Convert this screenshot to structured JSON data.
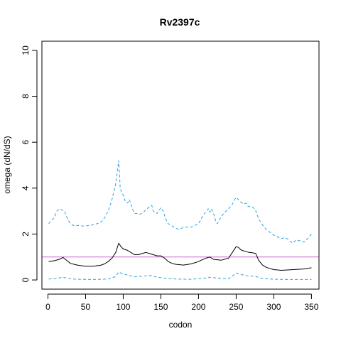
{
  "chart_data": {
    "type": "line",
    "title": "Rv2397c",
    "xlabel": "codon",
    "ylabel": "omega (dN/dS)",
    "xlim": [
      -8,
      360
    ],
    "ylim": [
      -0.4,
      10.4
    ],
    "xticks": [
      0,
      50,
      100,
      150,
      200,
      250,
      300,
      350
    ],
    "yticks": [
      0,
      2,
      4,
      6,
      8,
      10
    ],
    "grid": false,
    "reference_line": {
      "y": 1,
      "color": "#cc66cc"
    },
    "series": [
      {
        "role": "mean",
        "style": "solid",
        "color": "#000000",
        "x": [
          1,
          10,
          15,
          20,
          25,
          30,
          35,
          40,
          50,
          60,
          70,
          75,
          80,
          85,
          90,
          94,
          97,
          100,
          105,
          110,
          115,
          120,
          125,
          130,
          135,
          140,
          145,
          150,
          155,
          160,
          165,
          170,
          180,
          190,
          200,
          205,
          210,
          215,
          220,
          225,
          230,
          240,
          245,
          250,
          253,
          257,
          262,
          267,
          272,
          276,
          280,
          285,
          290,
          300,
          310,
          320,
          330,
          340,
          350
        ],
        "y": [
          0.8,
          0.85,
          0.9,
          0.98,
          0.85,
          0.72,
          0.68,
          0.64,
          0.6,
          0.6,
          0.64,
          0.7,
          0.8,
          0.95,
          1.2,
          1.6,
          1.45,
          1.35,
          1.3,
          1.2,
          1.1,
          1.1,
          1.15,
          1.2,
          1.15,
          1.1,
          1.05,
          1.05,
          0.95,
          0.8,
          0.72,
          0.68,
          0.65,
          0.7,
          0.8,
          0.88,
          0.95,
          1.0,
          0.9,
          0.88,
          0.86,
          0.95,
          1.2,
          1.45,
          1.42,
          1.3,
          1.25,
          1.2,
          1.18,
          1.15,
          0.85,
          0.65,
          0.55,
          0.45,
          0.42,
          0.44,
          0.46,
          0.48,
          0.53
        ]
      },
      {
        "role": "upper",
        "style": "dashed",
        "color": "#29a3e0",
        "x": [
          1,
          5,
          8,
          12,
          15,
          18,
          22,
          26,
          30,
          35,
          40,
          45,
          50,
          60,
          70,
          75,
          80,
          85,
          88,
          90,
          92,
          94,
          95,
          96,
          98,
          100,
          103,
          106,
          108,
          110,
          112,
          115,
          118,
          120,
          125,
          130,
          135,
          138,
          140,
          145,
          150,
          153,
          155,
          158,
          160,
          165,
          170,
          175,
          180,
          190,
          200,
          205,
          210,
          213,
          215,
          217,
          220,
          223,
          225,
          230,
          235,
          240,
          245,
          248,
          250,
          253,
          256,
          260,
          263,
          266,
          270,
          275,
          280,
          285,
          290,
          300,
          310,
          315,
          320,
          325,
          330,
          335,
          340,
          345,
          350
        ],
        "y": [
          2.45,
          2.6,
          2.7,
          3.0,
          3.1,
          3.05,
          3.0,
          2.65,
          2.45,
          2.35,
          2.38,
          2.35,
          2.35,
          2.4,
          2.5,
          2.7,
          3.0,
          3.5,
          3.9,
          4.2,
          4.7,
          5.2,
          4.6,
          4.0,
          3.8,
          3.7,
          3.4,
          3.35,
          3.5,
          3.35,
          3.1,
          2.9,
          2.9,
          2.85,
          2.9,
          3.05,
          3.2,
          3.25,
          3.0,
          2.9,
          3.15,
          3.0,
          2.8,
          2.55,
          2.45,
          2.35,
          2.25,
          2.2,
          2.3,
          2.3,
          2.45,
          2.75,
          3.0,
          3.1,
          2.95,
          3.1,
          2.9,
          2.55,
          2.45,
          2.75,
          2.95,
          3.1,
          3.3,
          3.5,
          3.6,
          3.5,
          3.4,
          3.3,
          3.35,
          3.2,
          3.2,
          3.1,
          2.65,
          2.4,
          2.2,
          1.95,
          1.8,
          1.85,
          1.75,
          1.6,
          1.75,
          1.7,
          1.65,
          1.8,
          2.0
        ]
      },
      {
        "role": "lower",
        "style": "dashed",
        "color": "#29a3e0",
        "x": [
          1,
          10,
          20,
          30,
          40,
          60,
          80,
          90,
          94,
          98,
          105,
          115,
          125,
          135,
          145,
          155,
          170,
          190,
          210,
          215,
          225,
          240,
          250,
          255,
          265,
          275,
          285,
          300,
          320,
          350
        ],
        "y": [
          0.04,
          0.06,
          0.12,
          0.05,
          0.03,
          0.02,
          0.04,
          0.15,
          0.35,
          0.28,
          0.22,
          0.14,
          0.16,
          0.2,
          0.12,
          0.08,
          0.04,
          0.03,
          0.08,
          0.12,
          0.08,
          0.05,
          0.3,
          0.25,
          0.18,
          0.16,
          0.06,
          0.03,
          0.02,
          0.02
        ]
      }
    ]
  }
}
